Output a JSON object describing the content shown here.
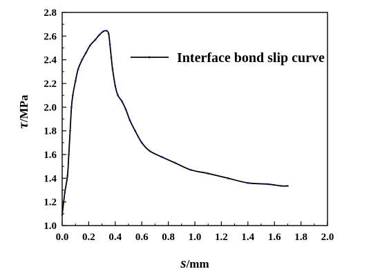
{
  "chart_data": {
    "type": "line",
    "title": "",
    "xlabel": {
      "symbol": "s",
      "unit": "/mm"
    },
    "ylabel": {
      "symbol": "τ",
      "unit": "/MPa"
    },
    "xlim": [
      0.0,
      2.0
    ],
    "ylim": [
      1.0,
      2.8
    ],
    "xticks": [
      "0.0",
      "0.2",
      "0.4",
      "0.6",
      "0.8",
      "1.0",
      "1.2",
      "1.4",
      "1.6",
      "1.8",
      "2.0"
    ],
    "yticks": [
      "1.0",
      "1.2",
      "1.4",
      "1.6",
      "1.8",
      "2.0",
      "2.2",
      "2.4",
      "2.6",
      "2.8"
    ],
    "grid": false,
    "legend": {
      "position": "top-right"
    },
    "series": [
      {
        "name": "Interface bond slip curve",
        "color": "#000000",
        "marker_color": "#1a1a8c",
        "x": [
          0.0,
          0.02,
          0.04,
          0.05,
          0.06,
          0.07,
          0.08,
          0.1,
          0.12,
          0.15,
          0.18,
          0.21,
          0.25,
          0.28,
          0.31,
          0.335,
          0.35,
          0.36,
          0.37,
          0.38,
          0.4,
          0.42,
          0.45,
          0.48,
          0.51,
          0.55,
          0.6,
          0.66,
          0.75,
          0.85,
          0.97,
          1.1,
          1.25,
          1.4,
          1.55,
          1.65,
          1.7
        ],
        "y": [
          1.09,
          1.28,
          1.42,
          1.6,
          1.8,
          2.0,
          2.1,
          2.22,
          2.32,
          2.4,
          2.46,
          2.52,
          2.57,
          2.61,
          2.64,
          2.645,
          2.62,
          2.53,
          2.42,
          2.32,
          2.18,
          2.1,
          2.05,
          1.98,
          1.89,
          1.8,
          1.7,
          1.63,
          1.58,
          1.53,
          1.47,
          1.44,
          1.4,
          1.36,
          1.35,
          1.335,
          1.335
        ]
      }
    ]
  }
}
